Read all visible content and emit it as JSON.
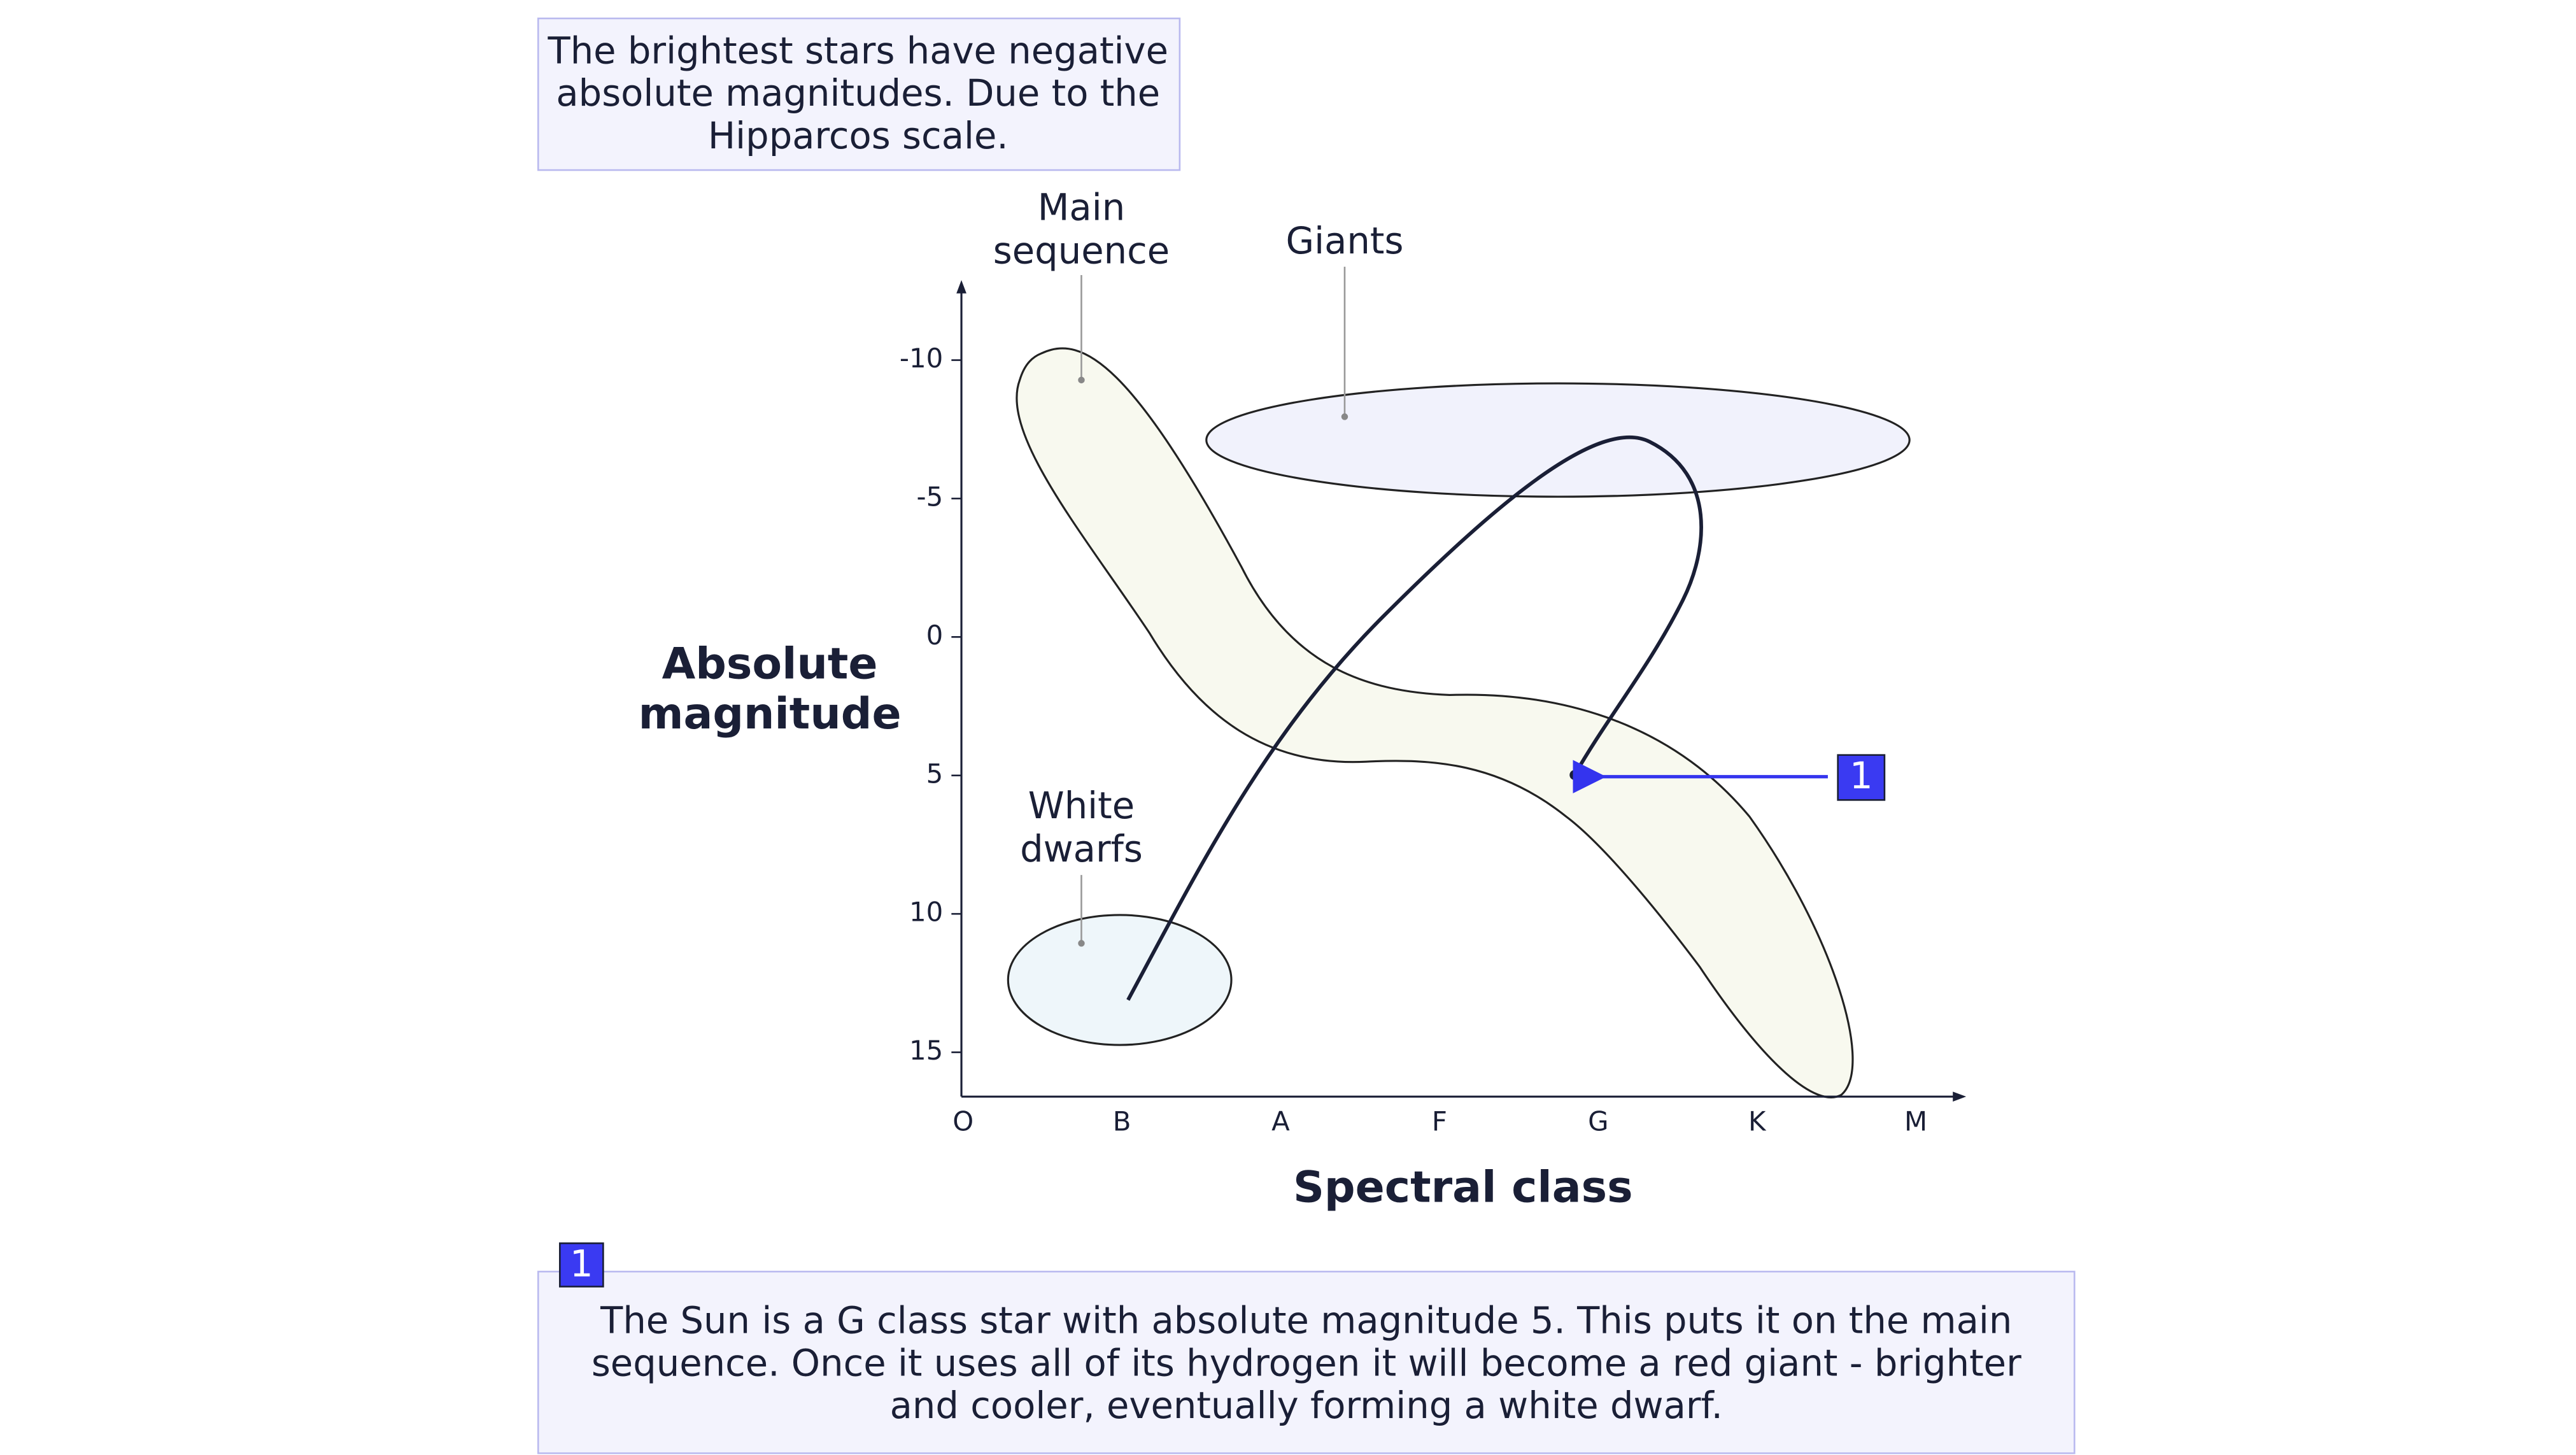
{
  "note_top": {
    "lines": [
      "The brightest stars have negative",
      "absolute magnitudes. Due to the",
      "Hipparcos scale."
    ]
  },
  "regions": {
    "main_sequence": [
      "Main",
      "sequence"
    ],
    "giants": [
      "Giants"
    ],
    "white_dwarfs": [
      "White",
      "dwarfs"
    ]
  },
  "callout": {
    "marker": "1",
    "lines": [
      "The Sun is a G class star with absolute magnitude 5. This puts it on the main",
      "sequence. Once it uses all of its hydrogen it will become a red giant - brighter",
      "and cooler, eventually forming a white dwarf."
    ]
  },
  "chart_data": {
    "type": "hr-diagram",
    "x_label": "Spectral class",
    "y_label": [
      "Absolute",
      "magnitude"
    ],
    "categories": [
      "O",
      "B",
      "A",
      "F",
      "G",
      "K",
      "M"
    ],
    "ylim": [
      -12.65,
      16.6
    ],
    "y_reversed": true,
    "yticks": [
      -10,
      -5,
      0,
      5,
      10,
      15
    ]
  }
}
